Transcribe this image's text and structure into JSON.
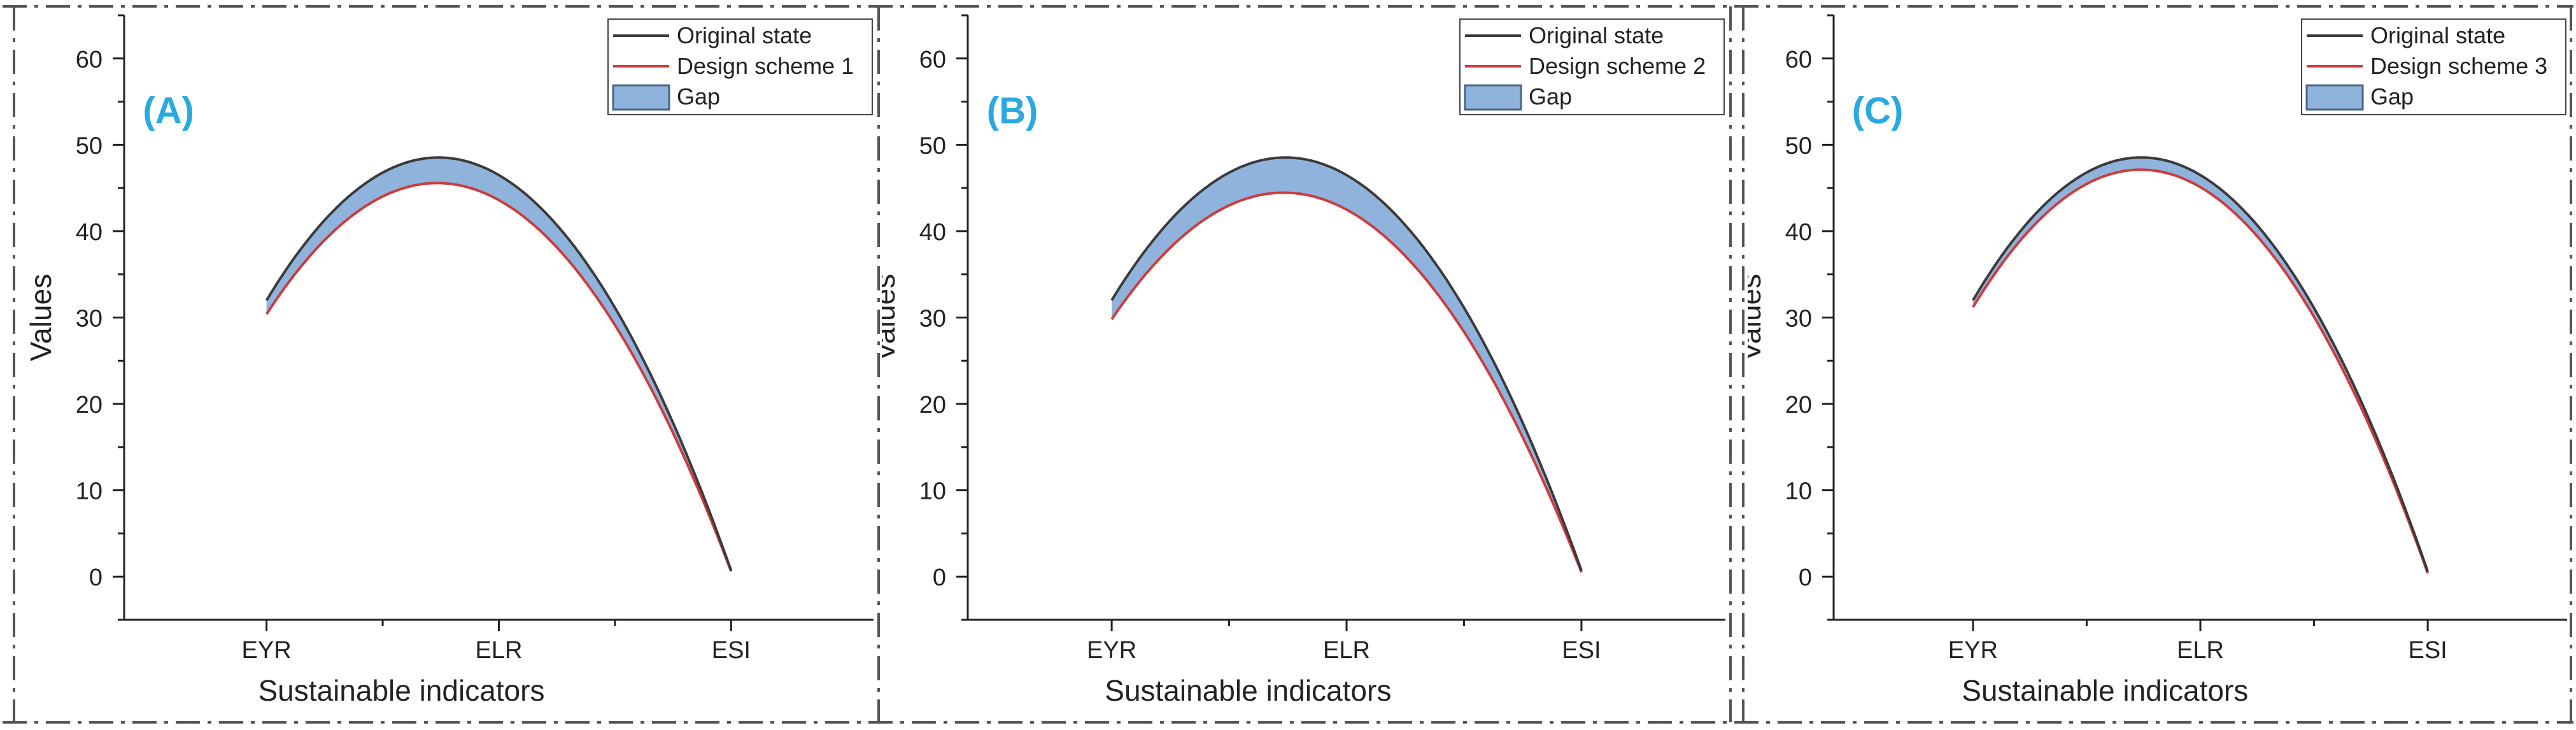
{
  "chart_data": [
    {
      "type": "area",
      "panel_label": "(A)",
      "categories": [
        "EYR",
        "ELR",
        "ESI"
      ],
      "series": [
        {
          "name": "Original state",
          "values": [
            32,
            46.5,
            0.7
          ],
          "color": "#3a3a3a"
        },
        {
          "name": "Design scheme 1",
          "values": [
            30.4,
            43.6,
            0.6
          ],
          "color": "#d03a3a"
        }
      ],
      "gap": {
        "name": "Gap",
        "color": "#8fb3dc",
        "edge_color": "#4a6488"
      },
      "xlabel": "Sustainable indicators",
      "ylabel": "Values",
      "ylim": [
        -5,
        65
      ],
      "y_ticks": [
        0,
        10,
        20,
        30,
        40,
        50,
        60
      ],
      "legend_position": "top-right",
      "grid": false
    },
    {
      "type": "area",
      "panel_label": "(B)",
      "categories": [
        "EYR",
        "ELR",
        "ESI"
      ],
      "series": [
        {
          "name": "Original state",
          "values": [
            32,
            46.5,
            0.7
          ],
          "color": "#3a3a3a"
        },
        {
          "name": "Design scheme 2",
          "values": [
            29.8,
            42.5,
            0.5
          ],
          "color": "#d03a3a"
        }
      ],
      "gap": {
        "name": "Gap",
        "color": "#8fb3dc",
        "edge_color": "#4a6488"
      },
      "xlabel": "Sustainable indicators",
      "ylabel": "Values",
      "ylim": [
        -5,
        65
      ],
      "y_ticks": [
        0,
        10,
        20,
        30,
        40,
        50,
        60
      ],
      "legend_position": "top-right",
      "grid": false
    },
    {
      "type": "area",
      "panel_label": "(C)",
      "categories": [
        "EYR",
        "ELR",
        "ESI"
      ],
      "series": [
        {
          "name": "Original state",
          "values": [
            32,
            46.5,
            0.6
          ],
          "color": "#3a3a3a"
        },
        {
          "name": "Design scheme 3",
          "values": [
            31.2,
            45.1,
            0.4
          ],
          "color": "#d03a3a"
        }
      ],
      "gap": {
        "name": "Gap",
        "color": "#8fb3dc",
        "edge_color": "#4a6488"
      },
      "xlabel": "Sustainable indicators",
      "ylabel": "Values",
      "ylim": [
        -5,
        65
      ],
      "y_ticks": [
        0,
        10,
        20,
        30,
        40,
        50,
        60
      ],
      "legend_position": "top-right",
      "grid": false
    }
  ],
  "colors": {
    "panel_label": "#29a9e0",
    "axis": "#222222",
    "frame_dash": "#555555"
  }
}
